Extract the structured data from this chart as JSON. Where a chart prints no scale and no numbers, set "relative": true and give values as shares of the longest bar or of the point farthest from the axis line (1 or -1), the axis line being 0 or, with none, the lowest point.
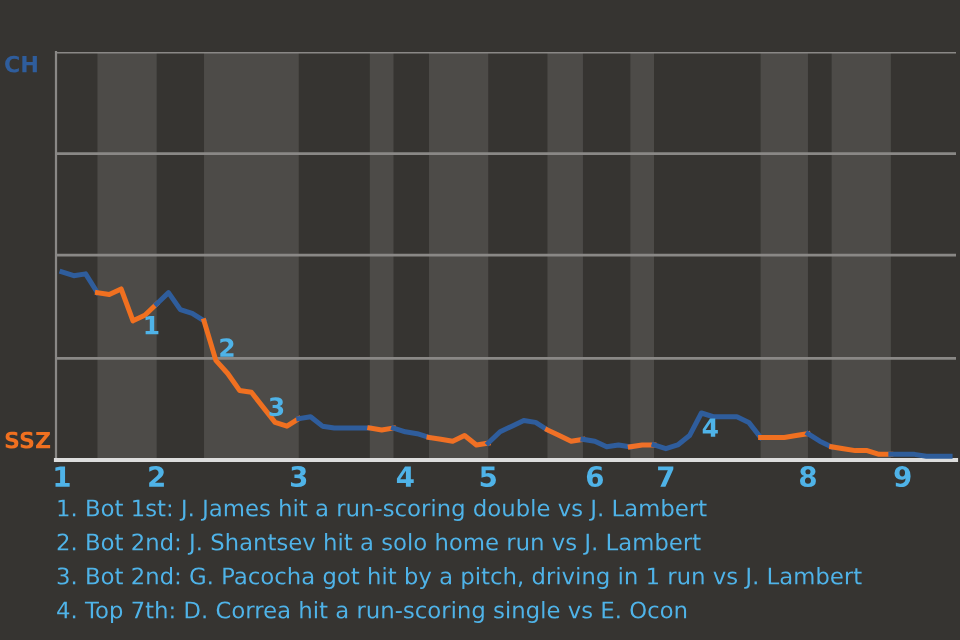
{
  "chart_data": {
    "type": "line",
    "relative": true,
    "categories": [
      "1",
      null,
      null,
      null,
      null,
      null,
      null,
      null,
      "2",
      null,
      null,
      null,
      null,
      null,
      null,
      null,
      null,
      null,
      null,
      null,
      "3",
      null,
      null,
      null,
      null,
      null,
      null,
      null,
      null,
      "4",
      null,
      null,
      null,
      null,
      null,
      null,
      "5",
      null,
      null,
      null,
      null,
      null,
      null,
      null,
      null,
      "6",
      null,
      null,
      null,
      null,
      null,
      "7",
      null,
      null,
      null,
      null,
      null,
      null,
      null,
      null,
      null,
      null,
      null,
      "8",
      null,
      null,
      null,
      null,
      null,
      null,
      null,
      "9",
      null,
      null,
      null,
      null
    ],
    "ref_lines": [
      {
        "axis": "y",
        "value": 0.54,
        "color": "#8a8886"
      },
      {
        "axis": "y",
        "value": 1.09,
        "color": "#8a8886"
      },
      {
        "axis": "y",
        "value": 1.63,
        "color": "#8a8886"
      },
      {
        "axis": "y",
        "value": 2.17,
        "color": "#8a8886"
      }
    ],
    "series": [
      {
        "color": "#2f5d9c",
        "values": [
          1.0,
          0.98,
          0.99,
          0.89,
          null,
          null,
          null,
          null,
          null,
          null,
          null,
          null,
          null,
          null,
          null,
          null,
          null,
          null,
          null,
          null,
          null,
          null,
          null,
          null,
          null,
          null,
          null,
          null,
          null,
          null,
          null,
          null,
          null,
          null,
          null,
          null,
          null,
          null,
          null,
          null,
          null,
          null,
          null,
          null,
          null,
          null,
          null,
          null,
          null,
          null,
          null,
          null,
          null,
          null,
          null,
          null,
          null,
          null,
          null,
          null,
          null,
          null,
          null,
          null,
          null,
          null,
          null,
          null,
          null,
          null,
          null,
          null,
          null,
          null,
          null,
          null
        ]
      },
      {
        "color": "#f07020",
        "values": [
          null,
          null,
          null,
          0.89,
          0.88,
          0.91,
          0.74,
          0.77,
          0.83,
          null,
          null,
          null,
          null,
          null,
          null,
          null,
          null,
          null,
          null,
          null,
          null,
          null,
          null,
          null,
          null,
          null,
          null,
          null,
          null,
          null,
          null,
          null,
          null,
          null,
          null,
          null,
          null,
          null,
          null,
          null,
          null,
          null,
          null,
          null,
          null,
          null,
          null,
          null,
          null,
          null,
          null,
          null,
          null,
          null,
          null,
          null,
          null,
          null,
          null,
          null,
          null,
          null,
          null,
          null,
          null,
          null,
          null,
          null,
          null,
          null,
          null,
          null,
          null,
          null,
          null,
          null
        ]
      },
      {
        "color": "#2f5d9c",
        "values": [
          null,
          null,
          null,
          null,
          null,
          null,
          null,
          null,
          0.83,
          0.89,
          0.8,
          0.78,
          0.74,
          null,
          null,
          null,
          null,
          null,
          null,
          null,
          null,
          null,
          null,
          null,
          null,
          null,
          null,
          null,
          null,
          null,
          null,
          null,
          null,
          null,
          null,
          null,
          null,
          null,
          null,
          null,
          null,
          null,
          null,
          null,
          null,
          null,
          null,
          null,
          null,
          null,
          null,
          null,
          null,
          null,
          null,
          null,
          null,
          null,
          null,
          null,
          null,
          null,
          null,
          null,
          null,
          null,
          null,
          null,
          null,
          null,
          null,
          null,
          null,
          null,
          null,
          null
        ]
      },
      {
        "color": "#f07020",
        "values": [
          null,
          null,
          null,
          null,
          null,
          null,
          null,
          null,
          null,
          null,
          null,
          null,
          0.74,
          0.53,
          0.46,
          0.37,
          0.36,
          0.28,
          0.2,
          0.18,
          0.22,
          null,
          null,
          null,
          null,
          null,
          null,
          null,
          null,
          null,
          null,
          null,
          null,
          null,
          null,
          null,
          null,
          null,
          null,
          null,
          null,
          null,
          null,
          null,
          null,
          null,
          null,
          null,
          null,
          null,
          null,
          null,
          null,
          null,
          null,
          null,
          null,
          null,
          null,
          null,
          null,
          null,
          null,
          null,
          null,
          null,
          null,
          null,
          null,
          null,
          null,
          null,
          null,
          null,
          null,
          null
        ]
      },
      {
        "color": "#2f5d9c",
        "values": [
          null,
          null,
          null,
          null,
          null,
          null,
          null,
          null,
          null,
          null,
          null,
          null,
          null,
          null,
          null,
          null,
          null,
          null,
          null,
          null,
          0.22,
          0.23,
          0.18,
          0.17,
          0.17,
          0.17,
          0.17,
          null,
          null,
          null,
          null,
          null,
          null,
          null,
          null,
          null,
          null,
          null,
          null,
          null,
          null,
          null,
          null,
          null,
          null,
          null,
          null,
          null,
          null,
          null,
          null,
          null,
          null,
          null,
          null,
          null,
          null,
          null,
          null,
          null,
          null,
          null,
          null,
          null,
          null,
          null,
          null,
          null,
          null,
          null,
          null,
          null,
          null,
          null,
          null,
          null
        ]
      },
      {
        "color": "#f07022",
        "values": [
          null,
          null,
          null,
          null,
          null,
          null,
          null,
          null,
          null,
          null,
          null,
          null,
          null,
          null,
          null,
          null,
          null,
          null,
          null,
          null,
          null,
          null,
          null,
          null,
          null,
          null,
          0.17,
          0.16,
          0.17,
          null,
          null,
          null,
          null,
          null,
          null,
          null,
          null,
          null,
          null,
          null,
          null,
          null,
          null,
          null,
          null,
          null,
          null,
          null,
          null,
          null,
          null,
          null,
          null,
          null,
          null,
          null,
          null,
          null,
          null,
          null,
          null,
          null,
          null,
          null,
          null,
          null,
          null,
          null,
          null,
          null,
          null,
          null,
          null,
          null,
          null,
          null
        ]
      },
      {
        "color": "#2f5d9c",
        "values": [
          null,
          null,
          null,
          null,
          null,
          null,
          null,
          null,
          null,
          null,
          null,
          null,
          null,
          null,
          null,
          null,
          null,
          null,
          null,
          null,
          null,
          null,
          null,
          null,
          null,
          null,
          null,
          null,
          0.17,
          0.15,
          0.14,
          0.12,
          null,
          null,
          null,
          null,
          null,
          null,
          null,
          null,
          null,
          null,
          null,
          null,
          null,
          null,
          null,
          null,
          null,
          null,
          null,
          null,
          null,
          null,
          null,
          null,
          null,
          null,
          null,
          null,
          null,
          null,
          null,
          null,
          null,
          null,
          null,
          null,
          null,
          null,
          null,
          null,
          null,
          null,
          null,
          null
        ]
      },
      {
        "color": "#f07024",
        "values": [
          null,
          null,
          null,
          null,
          null,
          null,
          null,
          null,
          null,
          null,
          null,
          null,
          null,
          null,
          null,
          null,
          null,
          null,
          null,
          null,
          null,
          null,
          null,
          null,
          null,
          null,
          null,
          null,
          null,
          null,
          null,
          0.12,
          0.11,
          0.1,
          0.13,
          0.08,
          0.09,
          null,
          null,
          null,
          null,
          null,
          null,
          null,
          null,
          null,
          null,
          null,
          null,
          null,
          null,
          null,
          null,
          null,
          null,
          null,
          null,
          null,
          null,
          null,
          null,
          null,
          null,
          null,
          null,
          null,
          null,
          null,
          null,
          null,
          null,
          null,
          null,
          null,
          null,
          null
        ]
      },
      {
        "color": "#2f5d9c",
        "values": [
          null,
          null,
          null,
          null,
          null,
          null,
          null,
          null,
          null,
          null,
          null,
          null,
          null,
          null,
          null,
          null,
          null,
          null,
          null,
          null,
          null,
          null,
          null,
          null,
          null,
          null,
          null,
          null,
          null,
          null,
          null,
          null,
          null,
          null,
          null,
          null,
          0.09,
          0.15,
          0.18,
          0.21,
          0.2,
          0.16,
          null,
          null,
          null,
          null,
          null,
          null,
          null,
          null,
          null,
          null,
          null,
          null,
          null,
          null,
          null,
          null,
          null,
          null,
          null,
          null,
          null,
          null,
          null,
          null,
          null,
          null,
          null,
          null,
          null,
          null,
          null,
          null,
          null,
          null
        ]
      },
      {
        "color": "#f07026",
        "values": [
          null,
          null,
          null,
          null,
          null,
          null,
          null,
          null,
          null,
          null,
          null,
          null,
          null,
          null,
          null,
          null,
          null,
          null,
          null,
          null,
          null,
          null,
          null,
          null,
          null,
          null,
          null,
          null,
          null,
          null,
          null,
          null,
          null,
          null,
          null,
          null,
          null,
          null,
          null,
          null,
          null,
          0.16,
          0.13,
          0.1,
          0.11,
          null,
          null,
          null,
          null,
          null,
          null,
          null,
          null,
          null,
          null,
          null,
          null,
          null,
          null,
          null,
          null,
          null,
          null,
          null,
          null,
          null,
          null,
          null,
          null,
          null,
          null,
          null,
          null,
          null,
          null,
          null
        ]
      },
      {
        "color": "#2f5d9c",
        "values": [
          null,
          null,
          null,
          null,
          null,
          null,
          null,
          null,
          null,
          null,
          null,
          null,
          null,
          null,
          null,
          null,
          null,
          null,
          null,
          null,
          null,
          null,
          null,
          null,
          null,
          null,
          null,
          null,
          null,
          null,
          null,
          null,
          null,
          null,
          null,
          null,
          null,
          null,
          null,
          null,
          null,
          null,
          null,
          null,
          0.11,
          0.1,
          0.07,
          0.08,
          0.07,
          null,
          null,
          null,
          null,
          null,
          null,
          null,
          null,
          null,
          null,
          null,
          null,
          null,
          null,
          null,
          null,
          null,
          null,
          null,
          null,
          null,
          null,
          null,
          null,
          null,
          null,
          null
        ]
      },
      {
        "color": "#f07028",
        "values": [
          null,
          null,
          null,
          null,
          null,
          null,
          null,
          null,
          null,
          null,
          null,
          null,
          null,
          null,
          null,
          null,
          null,
          null,
          null,
          null,
          null,
          null,
          null,
          null,
          null,
          null,
          null,
          null,
          null,
          null,
          null,
          null,
          null,
          null,
          null,
          null,
          null,
          null,
          null,
          null,
          null,
          null,
          null,
          null,
          null,
          null,
          null,
          null,
          0.07,
          0.08,
          0.08,
          null,
          null,
          null,
          null,
          null,
          null,
          null,
          null,
          null,
          null,
          null,
          null,
          null,
          null,
          null,
          null,
          null,
          null,
          null,
          null,
          null,
          null,
          null,
          null,
          null
        ]
      },
      {
        "color": "#2f5d9c",
        "values": [
          null,
          null,
          null,
          null,
          null,
          null,
          null,
          null,
          null,
          null,
          null,
          null,
          null,
          null,
          null,
          null,
          null,
          null,
          null,
          null,
          null,
          null,
          null,
          null,
          null,
          null,
          null,
          null,
          null,
          null,
          null,
          null,
          null,
          null,
          null,
          null,
          null,
          null,
          null,
          null,
          null,
          null,
          null,
          null,
          null,
          null,
          null,
          null,
          null,
          null,
          0.08,
          0.06,
          0.08,
          0.13,
          0.25,
          0.23,
          0.23,
          0.23,
          0.2,
          0.12,
          null,
          null,
          null,
          null,
          null,
          null,
          null,
          null,
          null,
          null,
          null,
          null,
          null,
          null,
          null,
          null
        ]
      },
      {
        "color": "#f07020",
        "values": [
          null,
          null,
          null,
          null,
          null,
          null,
          null,
          null,
          null,
          null,
          null,
          null,
          null,
          null,
          null,
          null,
          null,
          null,
          null,
          null,
          null,
          null,
          null,
          null,
          null,
          null,
          null,
          null,
          null,
          null,
          null,
          null,
          null,
          null,
          null,
          null,
          null,
          null,
          null,
          null,
          null,
          null,
          null,
          null,
          null,
          null,
          null,
          null,
          null,
          null,
          null,
          null,
          null,
          null,
          null,
          null,
          null,
          null,
          null,
          0.12,
          0.12,
          0.12,
          0.13,
          0.14,
          null,
          null,
          null,
          null,
          null,
          null,
          null,
          null,
          null,
          null,
          null,
          null
        ]
      },
      {
        "color": "#2f5d9e",
        "values": [
          null,
          null,
          null,
          null,
          null,
          null,
          null,
          null,
          null,
          null,
          null,
          null,
          null,
          null,
          null,
          null,
          null,
          null,
          null,
          null,
          null,
          null,
          null,
          null,
          null,
          null,
          null,
          null,
          null,
          null,
          null,
          null,
          null,
          null,
          null,
          null,
          null,
          null,
          null,
          null,
          null,
          null,
          null,
          null,
          null,
          null,
          null,
          null,
          null,
          null,
          null,
          null,
          null,
          null,
          null,
          null,
          null,
          null,
          null,
          null,
          null,
          null,
          null,
          0.14,
          0.1,
          0.07,
          null,
          null,
          null,
          null,
          null,
          null,
          null,
          null,
          null,
          null
        ]
      },
      {
        "color": "#f07020",
        "values": [
          null,
          null,
          null,
          null,
          null,
          null,
          null,
          null,
          null,
          null,
          null,
          null,
          null,
          null,
          null,
          null,
          null,
          null,
          null,
          null,
          null,
          null,
          null,
          null,
          null,
          null,
          null,
          null,
          null,
          null,
          null,
          null,
          null,
          null,
          null,
          null,
          null,
          null,
          null,
          null,
          null,
          null,
          null,
          null,
          null,
          null,
          null,
          null,
          null,
          null,
          null,
          null,
          null,
          null,
          null,
          null,
          null,
          null,
          null,
          null,
          null,
          null,
          null,
          null,
          null,
          0.07,
          0.06,
          0.05,
          0.05,
          0.03,
          0.03,
          null,
          null,
          null,
          null,
          null
        ]
      },
      {
        "color": "#2f5d9a",
        "values": [
          null,
          null,
          null,
          null,
          null,
          null,
          null,
          null,
          null,
          null,
          null,
          null,
          null,
          null,
          null,
          null,
          null,
          null,
          null,
          null,
          null,
          null,
          null,
          null,
          null,
          null,
          null,
          null,
          null,
          null,
          null,
          null,
          null,
          null,
          null,
          null,
          null,
          null,
          null,
          null,
          null,
          null,
          null,
          null,
          null,
          null,
          null,
          null,
          null,
          null,
          null,
          null,
          null,
          null,
          null,
          null,
          null,
          null,
          null,
          null,
          null,
          null,
          null,
          null,
          null,
          null,
          null,
          null,
          null,
          null,
          0.03,
          0.03,
          0.03,
          0.02,
          0.02,
          0.02
        ]
      }
    ],
    "annotations": [
      "CH",
      "SSZ",
      "1",
      "2",
      "3",
      "4",
      "1. Bot 1st: J. James hit a run-scoring double vs J. Lambert",
      "2. Bot 2nd: J. Shantsev hit a solo home run vs J. Lambert",
      "3. Bot 2nd: G. Pacocha got hit by a pitch, driving in 1 run vs J. Lambert",
      "4. Top 7th: D. Correa hit a run-scoring single vs E. Ocon"
    ]
  }
}
